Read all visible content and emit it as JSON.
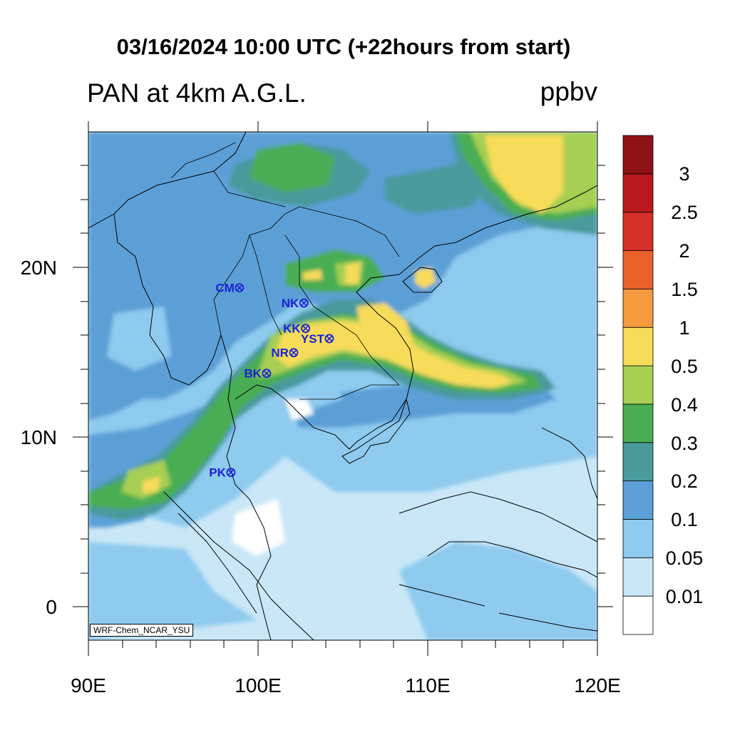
{
  "title": "03/16/2024 10:00 UTC (+22hours from start)",
  "variable": "PAN at 4km A.G.L.",
  "units": "ppbv",
  "credit": "WRF-Chem_NCAR_YSU",
  "lon_axis": {
    "ticks": [
      "90E",
      "100E",
      "110E",
      "120E"
    ],
    "range": [
      90,
      120
    ]
  },
  "lat_axis": {
    "ticks": [
      "0",
      "10N",
      "20N"
    ],
    "range": [
      -2,
      28
    ]
  },
  "colorbar": {
    "labels": [
      "0.01",
      "0.05",
      "0.1",
      "0.2",
      "0.3",
      "0.4",
      "0.5",
      "1",
      "1.5",
      "2",
      "2.5",
      "3"
    ],
    "colors": [
      "#ffffff",
      "#c9e7f7",
      "#8ecbef",
      "#5b9fd6",
      "#4a9a9c",
      "#4aad52",
      "#a6cf52",
      "#f7dc5a",
      "#f59a3e",
      "#e9602a",
      "#d6302a",
      "#b8191e",
      "#8e1216"
    ]
  },
  "stations": [
    {
      "name": "CM",
      "lon": 98.9,
      "lat": 18.8
    },
    {
      "name": "NK",
      "lon": 102.7,
      "lat": 17.9
    },
    {
      "name": "KK",
      "lon": 102.8,
      "lat": 16.4
    },
    {
      "name": "YST",
      "lon": 104.2,
      "lat": 15.8
    },
    {
      "name": "NR",
      "lon": 102.1,
      "lat": 14.97
    },
    {
      "name": "BK",
      "lon": 100.5,
      "lat": 13.75
    },
    {
      "name": "PK",
      "lon": 98.4,
      "lat": 7.9
    }
  ],
  "colors": {
    "station": "#1a22d6",
    "background": "#c9e7f7"
  }
}
